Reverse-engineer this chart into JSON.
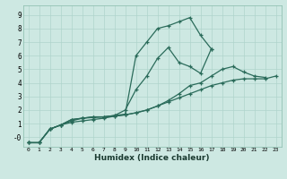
{
  "xlabel": "Humidex (Indice chaleur)",
  "background_color": "#cde8e2",
  "grid_color": "#afd4cc",
  "line_color": "#2a6b5a",
  "series": [
    {
      "x": [
        0,
        1,
        2,
        3,
        4,
        5,
        6,
        7,
        8,
        9,
        10,
        11,
        12,
        13,
        14,
        15,
        16,
        17
      ],
      "y": [
        -0.4,
        -0.4,
        0.6,
        0.9,
        1.3,
        1.4,
        1.5,
        1.5,
        1.6,
        1.7,
        6.0,
        7.0,
        8.0,
        8.2,
        8.5,
        8.8,
        7.5,
        6.5
      ]
    },
    {
      "x": [
        0,
        1,
        2,
        3,
        4,
        5,
        6,
        7,
        8,
        9,
        10,
        11,
        12,
        13,
        14,
        15,
        16,
        17
      ],
      "y": [
        -0.4,
        -0.4,
        0.6,
        0.9,
        1.3,
        1.4,
        1.5,
        1.5,
        1.6,
        2.0,
        3.5,
        4.5,
        5.8,
        6.6,
        5.5,
        5.2,
        4.7,
        6.5
      ]
    },
    {
      "x": [
        0,
        1,
        2,
        3,
        4,
        5,
        6,
        7,
        8,
        9,
        10,
        11,
        12,
        13,
        14,
        15,
        16,
        17,
        18,
        19,
        20,
        21,
        22
      ],
      "y": [
        -0.4,
        -0.4,
        0.6,
        0.9,
        1.2,
        1.4,
        1.45,
        1.5,
        1.55,
        1.65,
        1.8,
        2.0,
        2.3,
        2.7,
        3.2,
        3.8,
        4.0,
        4.5,
        5.0,
        5.2,
        4.8,
        4.5,
        4.4
      ]
    },
    {
      "x": [
        0,
        1,
        2,
        3,
        4,
        5,
        6,
        7,
        8,
        9,
        10,
        11,
        12,
        13,
        14,
        15,
        16,
        17,
        18,
        19,
        20,
        21,
        22,
        23
      ],
      "y": [
        -0.4,
        -0.4,
        0.6,
        0.9,
        1.1,
        1.2,
        1.3,
        1.4,
        1.55,
        1.65,
        1.8,
        2.0,
        2.3,
        2.6,
        2.9,
        3.2,
        3.5,
        3.8,
        4.0,
        4.2,
        4.3,
        4.3,
        4.3,
        4.5
      ]
    }
  ]
}
